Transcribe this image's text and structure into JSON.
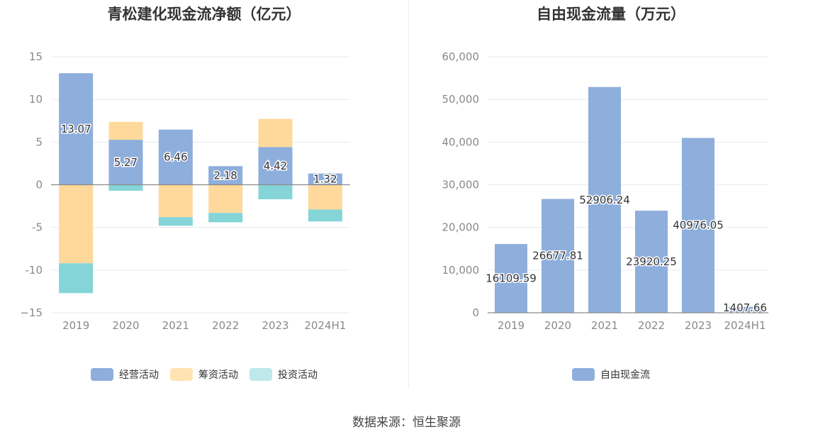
{
  "source_label": "数据来源：恒生聚源",
  "colors": {
    "operating": "#8eaedc",
    "financing": "#ffd99b",
    "investing": "#84d4d8",
    "free_cash_flow": "#8eaedc",
    "grid": "#e6eaf2",
    "axis_text": "#8a8a8a"
  },
  "chart_data": [
    {
      "type": "bar",
      "stacked": true,
      "title": "青松建化现金流净额（亿元）",
      "categories": [
        "2019",
        "2020",
        "2021",
        "2022",
        "2023",
        "2024H1"
      ],
      "ylim": [
        -15,
        15
      ],
      "yticks": [
        15,
        10,
        5,
        0,
        -5,
        -10,
        -15
      ],
      "ytick_labels": [
        "15",
        "10",
        "5",
        "0",
        "-5",
        "-10",
        "−15"
      ],
      "grid": true,
      "legend_position": "bottom",
      "series": [
        {
          "name": "经营活动",
          "values": [
            13.07,
            5.27,
            6.46,
            2.18,
            4.42,
            1.32
          ],
          "labels": [
            "13.07",
            "5.27",
            "6.46",
            "2.18",
            "4.42",
            "1.32"
          ]
        },
        {
          "name": "筹资活动",
          "values": [
            -9.2,
            2.1,
            -3.8,
            -3.3,
            3.3,
            -2.9
          ]
        },
        {
          "name": "投资活动",
          "values": [
            -3.5,
            -0.7,
            -1.0,
            -1.1,
            -1.7,
            -1.4
          ]
        }
      ]
    },
    {
      "type": "bar",
      "title": "自由现金流量（万元）",
      "categories": [
        "2019",
        "2020",
        "2021",
        "2022",
        "2023",
        "2024H1"
      ],
      "ylim": [
        0,
        60000
      ],
      "yticks": [
        60000,
        50000,
        40000,
        30000,
        20000,
        10000,
        0
      ],
      "ytick_labels": [
        "60,000",
        "50,000",
        "40,000",
        "30,000",
        "20,000",
        "10,000",
        "0"
      ],
      "grid": true,
      "legend_position": "bottom",
      "series": [
        {
          "name": "自由现金流",
          "values": [
            16109.59,
            26677.81,
            52906.24,
            23920.25,
            40976.05,
            1407.66
          ],
          "labels": [
            "16109.59",
            "26677.81",
            "52906.24",
            "23920.25",
            "40976.05",
            "1407.66"
          ]
        }
      ]
    }
  ]
}
